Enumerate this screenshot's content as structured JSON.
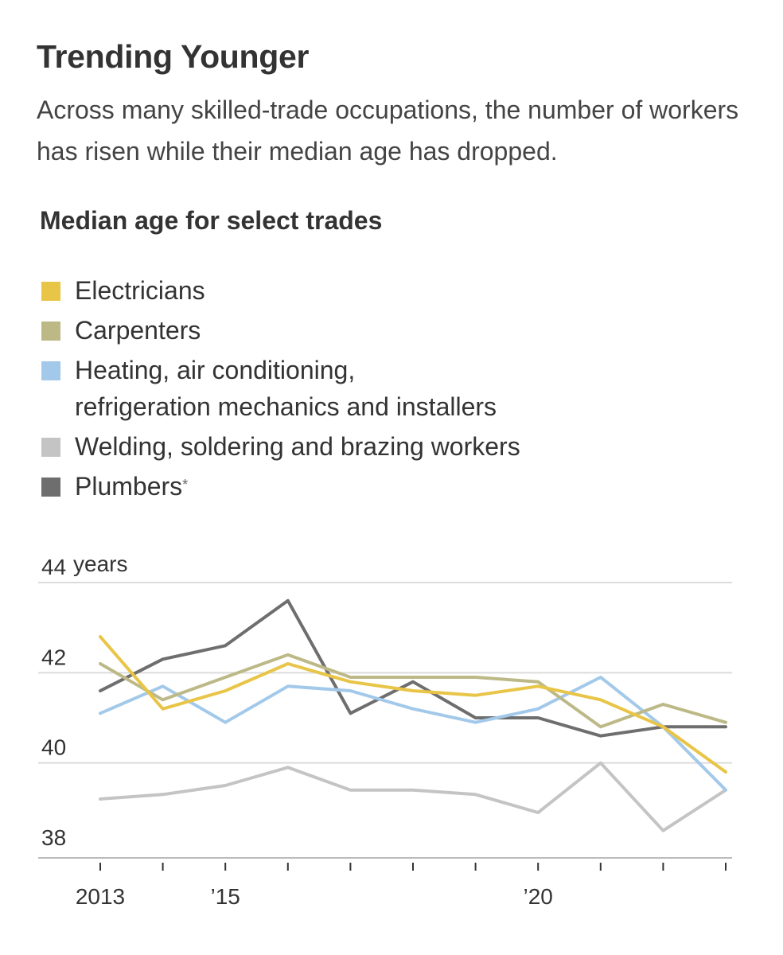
{
  "title": "Trending Younger",
  "subtitle": "Across many skilled-trade occupations, the number of workers has risen while their median age has dropped.",
  "chart_data": {
    "type": "line",
    "title": "Median age for select trades",
    "ylabel": "years",
    "xlabel": "",
    "ylim": [
      38,
      44
    ],
    "yticks": [
      38,
      40,
      42,
      44
    ],
    "ytick_labels": [
      "38",
      "40",
      "42",
      "44"
    ],
    "x": [
      2013,
      2014,
      2015,
      2016,
      2017,
      2018,
      2019,
      2020,
      2021,
      2022,
      2023
    ],
    "xtick_labels": [
      {
        "x": 2013,
        "label": "2013"
      },
      {
        "x": 2015,
        "label": "’15"
      },
      {
        "x": 2020,
        "label": "’20"
      }
    ],
    "series": [
      {
        "key": "welding",
        "name": "Welding, soldering and brazing workers",
        "color": "#c4c4c4",
        "values": [
          39.2,
          39.3,
          39.5,
          39.9,
          39.4,
          39.4,
          39.3,
          38.9,
          40.0,
          38.5,
          39.4
        ]
      },
      {
        "key": "plumbers",
        "name": "Plumbers",
        "footnote_mark": "*",
        "color": "#6e6e6e",
        "values": [
          41.6,
          42.3,
          42.6,
          43.6,
          41.1,
          41.8,
          41.0,
          41.0,
          40.6,
          40.8,
          40.8
        ]
      },
      {
        "key": "hvac",
        "name_line1": "Heating, air conditioning,",
        "name_line2": "refrigeration mechanics and installers",
        "color": "#a3c9ea",
        "values": [
          41.1,
          41.7,
          40.9,
          41.7,
          41.6,
          41.2,
          40.9,
          41.2,
          41.9,
          40.8,
          39.4
        ]
      },
      {
        "key": "carpenters",
        "name": "Carpenters",
        "color": "#bdb987",
        "values": [
          42.2,
          41.4,
          41.9,
          42.4,
          41.9,
          41.9,
          41.9,
          41.8,
          40.8,
          41.3,
          40.9
        ]
      },
      {
        "key": "electricians",
        "name": "Electricians",
        "color": "#e8c547",
        "values": [
          42.8,
          41.2,
          41.6,
          42.2,
          41.8,
          41.6,
          41.5,
          41.7,
          41.4,
          40.8,
          39.8
        ]
      }
    ]
  }
}
